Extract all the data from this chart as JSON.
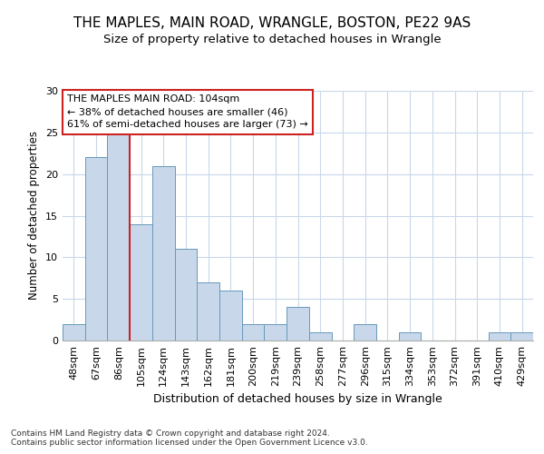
{
  "title": "THE MAPLES, MAIN ROAD, WRANGLE, BOSTON, PE22 9AS",
  "subtitle": "Size of property relative to detached houses in Wrangle",
  "xlabel": "Distribution of detached houses by size in Wrangle",
  "ylabel": "Number of detached properties",
  "categories": [
    "48sqm",
    "67sqm",
    "86sqm",
    "105sqm",
    "124sqm",
    "143sqm",
    "162sqm",
    "181sqm",
    "200sqm",
    "219sqm",
    "239sqm",
    "258sqm",
    "277sqm",
    "296sqm",
    "315sqm",
    "334sqm",
    "353sqm",
    "372sqm",
    "391sqm",
    "410sqm",
    "429sqm"
  ],
  "values": [
    2,
    22,
    25,
    14,
    21,
    11,
    7,
    6,
    2,
    2,
    4,
    1,
    0,
    2,
    0,
    1,
    0,
    0,
    0,
    1,
    1
  ],
  "bar_color": "#c8d8ea",
  "bar_edge_color": "#6699bb",
  "vline_x": 2.5,
  "vline_color": "#cc2222",
  "annotation_text": "THE MAPLES MAIN ROAD: 104sqm\n← 38% of detached houses are smaller (46)\n61% of semi-detached houses are larger (73) →",
  "annotation_box_facecolor": "#ffffff",
  "annotation_box_edgecolor": "#cc2222",
  "ylim": [
    0,
    30
  ],
  "yticks": [
    0,
    5,
    10,
    15,
    20,
    25,
    30
  ],
  "grid_color": "#c8d8ea",
  "plot_bg_color": "#ffffff",
  "fig_bg_color": "#ffffff",
  "title_fontsize": 11,
  "subtitle_fontsize": 9.5,
  "xlabel_fontsize": 9,
  "ylabel_fontsize": 8.5,
  "tick_fontsize": 8,
  "annotation_fontsize": 8,
  "footer_fontsize": 6.5,
  "footer_text": "Contains HM Land Registry data © Crown copyright and database right 2024.\nContains public sector information licensed under the Open Government Licence v3.0."
}
